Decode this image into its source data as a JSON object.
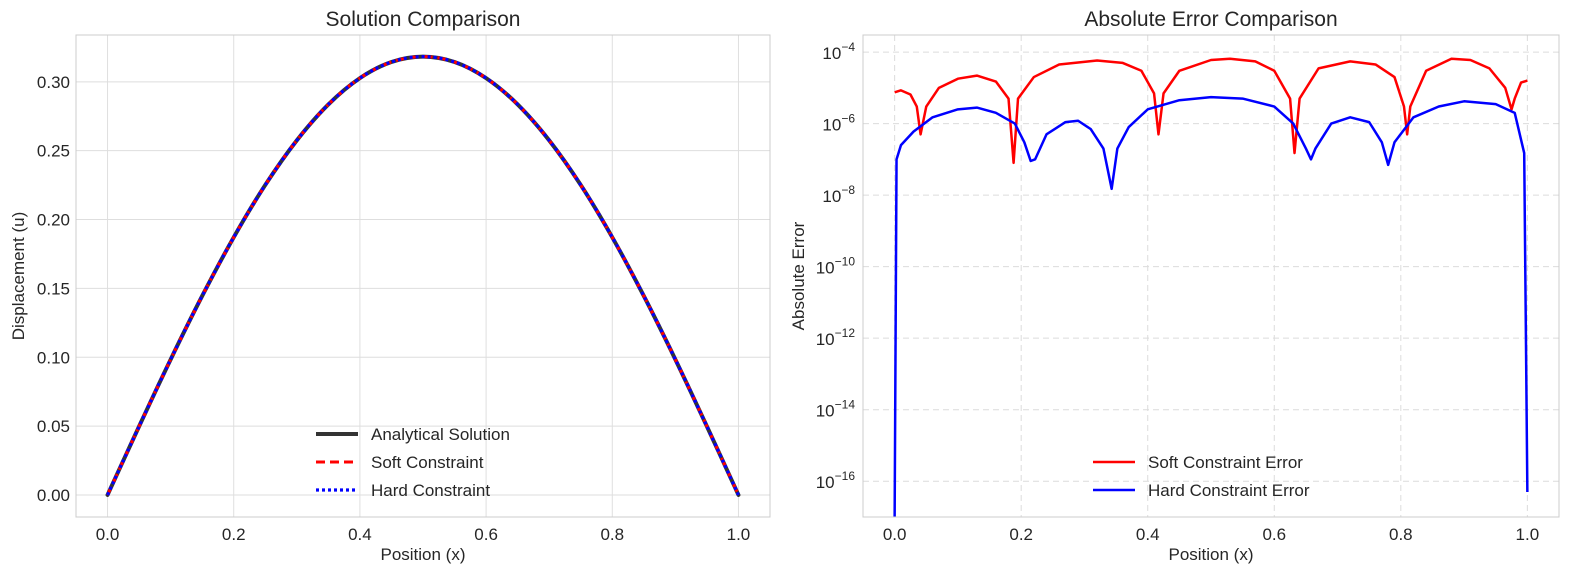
{
  "chart_data": [
    {
      "type": "line",
      "title": "Solution Comparison",
      "xlabel": "Position (x)",
      "ylabel": "Displacement (u)",
      "xlim": [
        -0.05,
        1.05
      ],
      "ylim": [
        -0.016,
        0.334
      ],
      "xticks": [
        "0.0",
        "0.2",
        "0.4",
        "0.6",
        "0.8",
        "1.0"
      ],
      "yticks": [
        "0.00",
        "0.05",
        "0.10",
        "0.15",
        "0.20",
        "0.25",
        "0.30"
      ],
      "grid": true,
      "legend_position": "lower-center",
      "x": [
        0.0,
        0.05,
        0.1,
        0.15,
        0.2,
        0.25,
        0.3,
        0.35,
        0.4,
        0.45,
        0.5,
        0.55,
        0.6,
        0.65,
        0.7,
        0.75,
        0.8,
        0.85,
        0.9,
        0.95,
        1.0
      ],
      "series": [
        {
          "name": "Analytical Solution",
          "color": "#333333",
          "style": "solid",
          "values": [
            0.0,
            0.0498,
            0.0984,
            0.1445,
            0.1871,
            0.2251,
            0.2575,
            0.2836,
            0.3027,
            0.3144,
            0.3183,
            0.3144,
            0.3027,
            0.2836,
            0.2575,
            0.2251,
            0.1871,
            0.1445,
            0.0984,
            0.0498,
            0.0
          ]
        },
        {
          "name": "Soft Constraint",
          "color": "#ff0000",
          "style": "dashed",
          "values": [
            0.0,
            0.0498,
            0.0984,
            0.1445,
            0.1871,
            0.2251,
            0.2575,
            0.2836,
            0.3027,
            0.3144,
            0.3183,
            0.3144,
            0.3027,
            0.2836,
            0.2575,
            0.2251,
            0.1871,
            0.1445,
            0.0984,
            0.0498,
            0.0
          ]
        },
        {
          "name": "Hard Constraint",
          "color": "#0000ff",
          "style": "dotted",
          "values": [
            0.0,
            0.0498,
            0.0984,
            0.1445,
            0.1871,
            0.2251,
            0.2575,
            0.2836,
            0.3027,
            0.3144,
            0.3183,
            0.3144,
            0.3027,
            0.2836,
            0.2575,
            0.2251,
            0.1871,
            0.1445,
            0.0984,
            0.0498,
            0.0
          ]
        }
      ]
    },
    {
      "type": "line",
      "title": "Absolute Error Comparison",
      "xlabel": "Position (x)",
      "ylabel": "Absolute Error",
      "yscale": "log",
      "xlim": [
        -0.05,
        1.05
      ],
      "ylim": [
        1e-17,
        0.0003
      ],
      "xticks": [
        "0.0",
        "0.2",
        "0.4",
        "0.6",
        "0.8",
        "1.0"
      ],
      "yticks": [
        {
          "base": "10",
          "exp": "−4",
          "value": 0.0001
        },
        {
          "base": "10",
          "exp": "−6",
          "value": 1e-06
        },
        {
          "base": "10",
          "exp": "−8",
          "value": 1e-08
        },
        {
          "base": "10",
          "exp": "−10",
          "value": 1e-10
        },
        {
          "base": "10",
          "exp": "−12",
          "value": 1e-12
        },
        {
          "base": "10",
          "exp": "−14",
          "value": 1e-14
        },
        {
          "base": "10",
          "exp": "−16",
          "value": 1e-16
        }
      ],
      "grid": true,
      "legend_position": "lower-center",
      "series": [
        {
          "name": "Soft Constraint Error",
          "color": "#ff0000",
          "points": [
            [
              0.0,
              7.5e-06
            ],
            [
              0.01,
              8.5e-06
            ],
            [
              0.025,
              6.5e-06
            ],
            [
              0.035,
              3e-06
            ],
            [
              0.041,
              5e-07
            ],
            [
              0.05,
              3e-06
            ],
            [
              0.07,
              1e-05
            ],
            [
              0.1,
              1.8e-05
            ],
            [
              0.13,
              2.2e-05
            ],
            [
              0.16,
              1.5e-05
            ],
            [
              0.18,
              5e-06
            ],
            [
              0.188,
              8e-08
            ],
            [
              0.195,
              5e-06
            ],
            [
              0.22,
              2e-05
            ],
            [
              0.26,
              4.5e-05
            ],
            [
              0.32,
              5.8e-05
            ],
            [
              0.36,
              5e-05
            ],
            [
              0.39,
              3e-05
            ],
            [
              0.41,
              7e-06
            ],
            [
              0.417,
              5e-07
            ],
            [
              0.425,
              7e-06
            ],
            [
              0.45,
              3e-05
            ],
            [
              0.5,
              6e-05
            ],
            [
              0.53,
              6.5e-05
            ],
            [
              0.57,
              5.5e-05
            ],
            [
              0.6,
              3e-05
            ],
            [
              0.625,
              5e-06
            ],
            [
              0.632,
              1.5e-07
            ],
            [
              0.64,
              5e-06
            ],
            [
              0.67,
              3.5e-05
            ],
            [
              0.72,
              5.5e-05
            ],
            [
              0.76,
              4.5e-05
            ],
            [
              0.79,
              2e-05
            ],
            [
              0.805,
              3e-06
            ],
            [
              0.81,
              5e-07
            ],
            [
              0.815,
              3e-06
            ],
            [
              0.84,
              3e-05
            ],
            [
              0.88,
              6.5e-05
            ],
            [
              0.91,
              6e-05
            ],
            [
              0.94,
              3.5e-05
            ],
            [
              0.965,
              1e-05
            ],
            [
              0.975,
              2.5e-06
            ],
            [
              0.98,
              5e-06
            ],
            [
              0.99,
              1.4e-05
            ],
            [
              1.0,
              1.6e-05
            ]
          ]
        },
        {
          "name": "Hard Constraint Error",
          "color": "#0000ff",
          "points": [
            [
              0.0,
              1e-17
            ],
            [
              0.003,
              1e-07
            ],
            [
              0.01,
              2.5e-07
            ],
            [
              0.03,
              6e-07
            ],
            [
              0.06,
              1.5e-06
            ],
            [
              0.1,
              2.5e-06
            ],
            [
              0.13,
              2.8e-06
            ],
            [
              0.16,
              2e-06
            ],
            [
              0.19,
              1e-06
            ],
            [
              0.205,
              3e-07
            ],
            [
              0.215,
              9e-08
            ],
            [
              0.222,
              1e-07
            ],
            [
              0.24,
              5e-07
            ],
            [
              0.27,
              1.1e-06
            ],
            [
              0.29,
              1.2e-06
            ],
            [
              0.31,
              7e-07
            ],
            [
              0.33,
              2e-07
            ],
            [
              0.343,
              1.5e-08
            ],
            [
              0.352,
              2e-07
            ],
            [
              0.37,
              8e-07
            ],
            [
              0.4,
              2.5e-06
            ],
            [
              0.45,
              4.5e-06
            ],
            [
              0.5,
              5.5e-06
            ],
            [
              0.55,
              5e-06
            ],
            [
              0.6,
              3e-06
            ],
            [
              0.63,
              1e-06
            ],
            [
              0.65,
              2e-07
            ],
            [
              0.658,
              1e-07
            ],
            [
              0.665,
              2e-07
            ],
            [
              0.69,
              1e-06
            ],
            [
              0.72,
              1.5e-06
            ],
            [
              0.75,
              1.1e-06
            ],
            [
              0.77,
              3e-07
            ],
            [
              0.78,
              7e-08
            ],
            [
              0.79,
              3e-07
            ],
            [
              0.82,
              1.5e-06
            ],
            [
              0.86,
              3e-06
            ],
            [
              0.9,
              4.2e-06
            ],
            [
              0.95,
              3.5e-06
            ],
            [
              0.98,
              2e-06
            ],
            [
              0.995,
              1.5e-07
            ],
            [
              1.0,
              5e-17
            ]
          ]
        }
      ]
    }
  ]
}
